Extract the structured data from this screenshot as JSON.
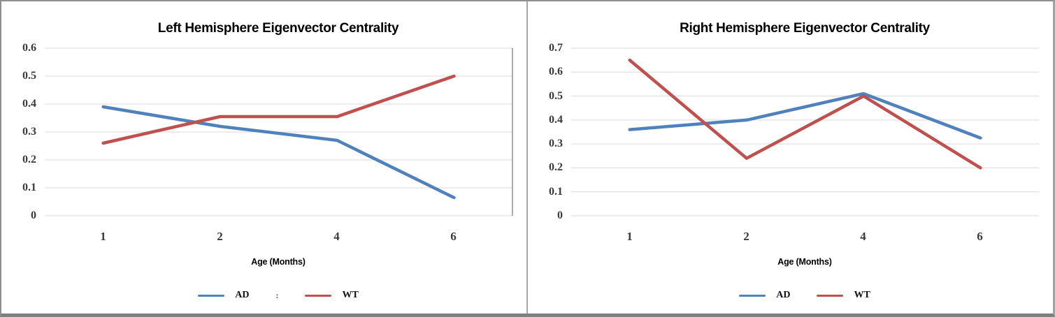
{
  "colors": {
    "ad_line": "#4F81BD",
    "wt_line": "#C0504D",
    "gridline": "#D9D9D9",
    "plot_border": "#919191",
    "panel_divider": "#A6A6A6",
    "outer_border": "#8F8F8F"
  },
  "chart_data": [
    {
      "type": "line",
      "title": "Left Hemisphere Eigenvector Centrality",
      "xlabel": "Age (Months)",
      "ylabel": "",
      "categories": [
        "1",
        "2",
        "4",
        "6"
      ],
      "ylim": [
        0,
        0.6
      ],
      "ytick_step": 0.1,
      "grid": true,
      "legend_position": "bottom",
      "legend_separator": ":",
      "plot_right_border": true,
      "series": [
        {
          "name": "AD",
          "color": "#4F81BD",
          "values": [
            0.39,
            0.32,
            0.27,
            0.065
          ]
        },
        {
          "name": "WT",
          "color": "#C0504D",
          "values": [
            0.26,
            0.355,
            0.355,
            0.5
          ]
        }
      ]
    },
    {
      "type": "line",
      "title": "Right Hemisphere Eigenvector Centrality",
      "xlabel": "Age (Months)",
      "ylabel": "",
      "categories": [
        "1",
        "2",
        "4",
        "6"
      ],
      "ylim": [
        0,
        0.7
      ],
      "ytick_step": 0.1,
      "grid": true,
      "legend_position": "bottom",
      "legend_separator": "",
      "plot_right_border": false,
      "series": [
        {
          "name": "AD",
          "color": "#4F81BD",
          "values": [
            0.36,
            0.4,
            0.51,
            0.325
          ]
        },
        {
          "name": "WT",
          "color": "#C0504D",
          "values": [
            0.65,
            0.24,
            0.5,
            0.2
          ]
        }
      ]
    }
  ]
}
